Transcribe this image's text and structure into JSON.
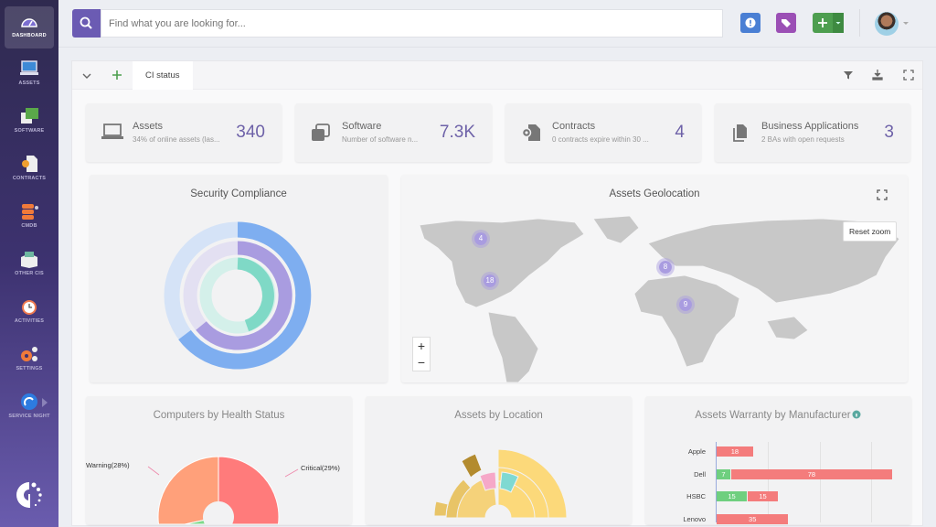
{
  "sidebar": {
    "items": [
      {
        "label": "DASHBOARD",
        "icon": "gauge-icon",
        "active": true
      },
      {
        "label": "ASSETS",
        "icon": "laptop-icon"
      },
      {
        "label": "SOFTWARE",
        "icon": "software-window-icon"
      },
      {
        "label": "CONTRACTS",
        "icon": "contract-icon"
      },
      {
        "label": "CMDB",
        "icon": "database-icon"
      },
      {
        "label": "OTHER CIS",
        "icon": "box-icon"
      },
      {
        "label": "ACTIVITIES",
        "icon": "clock-icon"
      },
      {
        "label": "SETTINGS",
        "icon": "gears-icon"
      },
      {
        "label": "SERVICE NIGHT",
        "icon": "service-night-icon"
      }
    ]
  },
  "topbar": {
    "search_placeholder": "Find what you are looking for...",
    "colors": {
      "alert": "#4a7fd4",
      "tags": "#9b4fb5",
      "add": "#4d9e4f",
      "search": "#6b5bb3"
    }
  },
  "tabs": {
    "active": "CI status"
  },
  "cards": [
    {
      "title": "Assets",
      "subtitle": "34% of online assets (las...",
      "value": "340",
      "icon": "laptop-icon"
    },
    {
      "title": "Software",
      "subtitle": "Number of software n...",
      "value": "7.3K",
      "icon": "copy-icon"
    },
    {
      "title": "Contracts",
      "subtitle": "0 contracts expire within 30 ...",
      "value": "4",
      "icon": "contract-icon"
    },
    {
      "title": "Business Applications",
      "subtitle": "2 BAs with open requests",
      "value": "3",
      "icon": "documents-icon"
    }
  ],
  "widgets": {
    "security": {
      "title": "Security Compliance"
    },
    "geo": {
      "title": "Assets Geolocation",
      "reset": "Reset zoom",
      "zoom_in": "+",
      "zoom_out": "−",
      "clusters": [
        "4",
        "18",
        "8",
        "9"
      ]
    },
    "health": {
      "title": "Computers by Health Status",
      "labels": [
        "Warning(28%)",
        "Critical(29%)"
      ]
    },
    "location": {
      "title": "Assets by Location"
    },
    "warranty": {
      "title": "Assets Warranty by Manufacturer"
    }
  },
  "chart_data": [
    {
      "type": "pie",
      "title": "Computers by Health Status",
      "series": [
        {
          "name": "Warning",
          "value": 28,
          "color": "#ffa07a"
        },
        {
          "name": "Critical",
          "value": 29,
          "color": "#ff7b7b"
        }
      ]
    },
    {
      "type": "bar",
      "title": "Assets Warranty by Manufacturer",
      "categories": [
        "Apple",
        "Dell",
        "HSBC",
        "Lenovo"
      ],
      "series": [
        {
          "values": [
            0,
            7,
            15,
            0
          ],
          "color": "#6fcf7f"
        },
        {
          "values": [
            18,
            78,
            15,
            35
          ],
          "color": "#f47c7c"
        }
      ]
    }
  ]
}
